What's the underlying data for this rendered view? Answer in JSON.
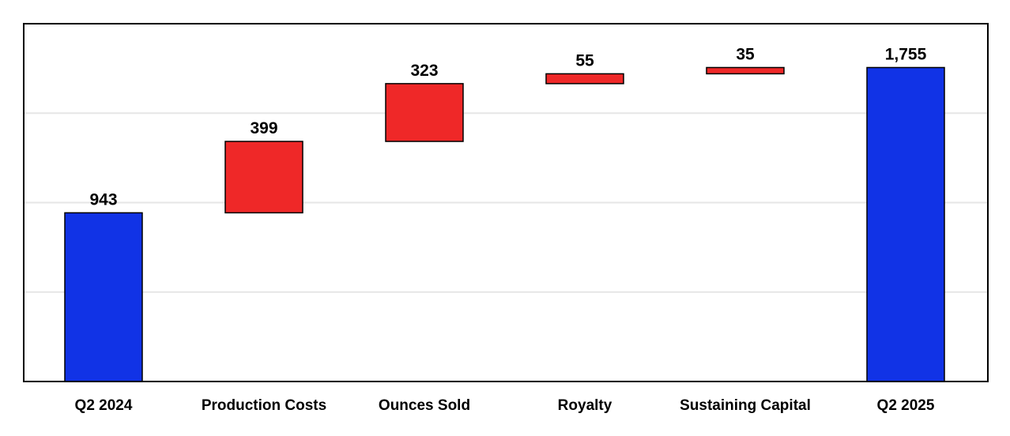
{
  "chart_data": {
    "type": "bar",
    "subtype": "waterfall",
    "categories": [
      "Q2 2024",
      "Production Costs",
      "Ounces Sold",
      "Royalty",
      "Sustaining Capital",
      "Q2 2025"
    ],
    "values": [
      943,
      399,
      323,
      55,
      35,
      1755
    ],
    "value_labels": [
      "943",
      "399",
      "323",
      "55",
      "35",
      "1,755"
    ],
    "kinds": [
      "total",
      "delta",
      "delta",
      "delta",
      "delta",
      "total"
    ],
    "ylim": [
      0,
      2000
    ],
    "grid": true,
    "legend": "none",
    "title": "",
    "xlabel": "",
    "ylabel": ""
  },
  "colors": {
    "total": "#1133e6",
    "delta": "#ef2828",
    "grid": "#e6e6e6",
    "frame": "#000000"
  }
}
